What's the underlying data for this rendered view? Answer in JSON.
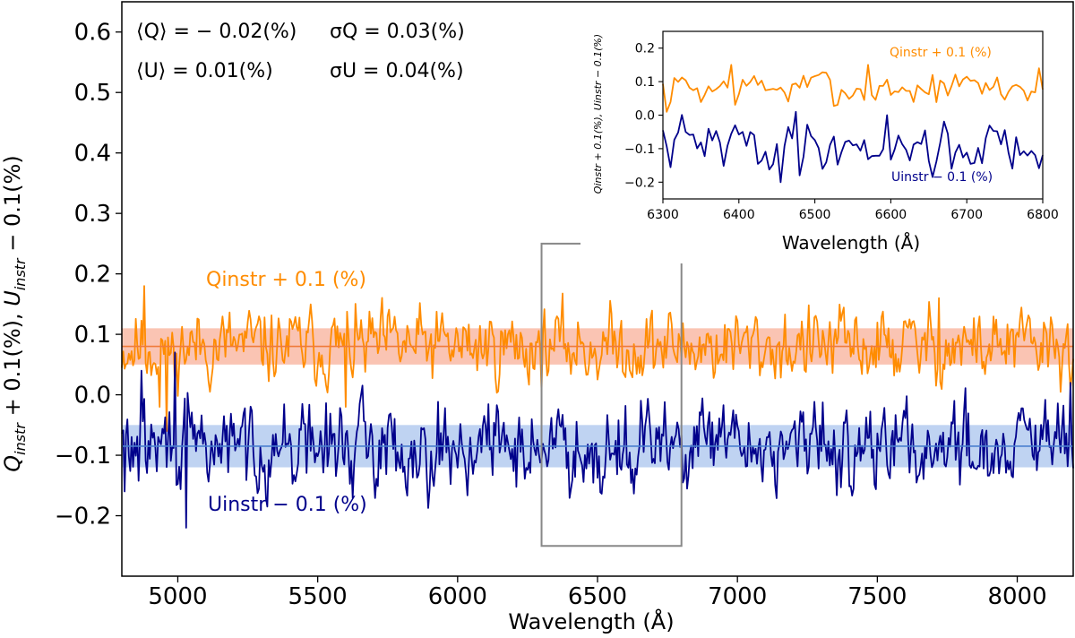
{
  "chart_data": {
    "type": "line",
    "main": {
      "xlabel": "Wavelength (Å)",
      "ylabel": "Q_instr + 0.1(%), U_instr − 0.1(%)",
      "xlim": [
        4800,
        8200
      ],
      "ylim": [
        -0.3,
        0.65
      ],
      "xticks": [
        5000,
        5500,
        6000,
        6500,
        7000,
        7500,
        8000
      ],
      "yticks": [
        -0.2,
        -0.1,
        0.0,
        0.1,
        0.2,
        0.3,
        0.4,
        0.5,
        0.6
      ],
      "xtick_labels": [
        "5000",
        "5500",
        "6000",
        "6500",
        "7000",
        "7500",
        "8000"
      ],
      "ytick_labels": [
        "−0.2",
        "−0.1",
        "0.0",
        "0.1",
        "0.2",
        "0.3",
        "0.4",
        "0.5",
        "0.6"
      ],
      "zoom_box": {
        "x": [
          6300,
          6800
        ],
        "y": [
          -0.25,
          0.25
        ]
      },
      "series": [
        {
          "name": "Q_instr + 0.1 (%)",
          "color": "#ff8c00",
          "mean": 0.08,
          "band": [
            0.05,
            0.11
          ],
          "band_color": "#f8b09a",
          "x_range": [
            4800,
            8200
          ],
          "seed": 11,
          "sigma": 0.028,
          "spikes": [
            [
              4880,
              0.18
            ],
            [
              4935,
              -0.02
            ],
            [
              4960,
              -0.06
            ],
            [
              4990,
              0.01
            ],
            [
              5600,
              -0.02
            ],
            [
              7720,
              0.16
            ],
            [
              8190,
              0.01
            ]
          ]
        },
        {
          "name": "U_instr − 0.1 (%)",
          "color": "#00008b",
          "mean": -0.085,
          "band": [
            -0.12,
            -0.05
          ],
          "band_color": "#a9c4ee",
          "x_range": [
            4800,
            8200
          ],
          "seed": 29,
          "sigma": 0.032,
          "spikes": [
            [
              4810,
              -0.16
            ],
            [
              4870,
              0.04
            ],
            [
              4990,
              0.07
            ],
            [
              5030,
              -0.22
            ],
            [
              8190,
              0.02
            ]
          ]
        }
      ],
      "annotations": {
        "q_mean": "⟨Q⟩ = − 0.02(%)",
        "q_sigma": "σQ = 0.03(%)",
        "u_mean": "⟨U⟩ = 0.01(%)",
        "u_sigma": "σU = 0.04(%)"
      },
      "series_labels": {
        "q": "Qinstr + 0.1 (%)",
        "u": "Uinstr − 0.1 (%)"
      }
    },
    "inset": {
      "xlabel": "Wavelength (Å)",
      "ylabel": "Qinstr + 0.1(%), Uinstr − 0.1(%)",
      "xlim": [
        6300,
        6800
      ],
      "ylim": [
        -0.25,
        0.25
      ],
      "xticks": [
        6300,
        6400,
        6500,
        6600,
        6700,
        6800
      ],
      "yticks": [
        -0.2,
        -0.1,
        0.0,
        0.1,
        0.2
      ],
      "xtick_labels": [
        "6300",
        "6400",
        "6500",
        "6600",
        "6700",
        "6800"
      ],
      "ytick_labels": [
        "−0.2",
        "−0.1",
        "0.0",
        "0.1",
        "0.2"
      ],
      "series": [
        {
          "name": "Q_instr + 0.1 (%)",
          "color": "#ff8c00",
          "mean": 0.08,
          "seed": 7,
          "sigma": 0.025,
          "spikes": [
            [
              6305,
              0.01
            ],
            [
              6390,
              0.15
            ],
            [
              6570,
              0.15
            ],
            [
              6795,
              0.14
            ]
          ]
        },
        {
          "name": "U_instr − 0.1 (%)",
          "color": "#00008b",
          "mean": -0.09,
          "seed": 41,
          "sigma": 0.035,
          "spikes": [
            [
              6455,
              -0.2
            ],
            [
              6475,
              0.01
            ],
            [
              6595,
              0.0
            ],
            [
              6680,
              -0.16
            ]
          ]
        }
      ],
      "series_labels": {
        "q": "Qinstr + 0.1 (%)",
        "u": "Uinstr − 0.1 (%)"
      }
    }
  }
}
